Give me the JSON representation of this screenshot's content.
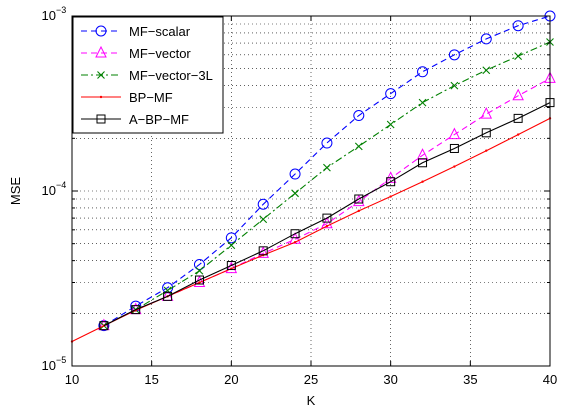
{
  "chart_data": {
    "type": "line",
    "title": "",
    "xlabel": "K",
    "ylabel": "MSE",
    "xlim": [
      10,
      40
    ],
    "ylim": [
      1e-05,
      0.001
    ],
    "yscale": "log",
    "grid": true,
    "legend_position": "top-left",
    "x_ticks": [
      10,
      15,
      20,
      25,
      30,
      35,
      40
    ],
    "x_tick_labels": [
      "10",
      "15",
      "20",
      "25",
      "30",
      "35",
      "40"
    ],
    "y_ticks": [
      1e-05,
      0.0001,
      0.001
    ],
    "y_tick_labels": [
      {
        "base": "10",
        "exp": "−5"
      },
      {
        "base": "10",
        "exp": "−4"
      },
      {
        "base": "10",
        "exp": "−3"
      }
    ],
    "series": [
      {
        "name": "MF−scalar",
        "color": "#0000ff",
        "line_style": "dashed",
        "marker": "circle",
        "x": [
          12,
          14,
          16,
          18,
          20,
          22,
          24,
          26,
          28,
          30,
          32,
          34,
          36,
          38,
          40
        ],
        "values": [
          1.7e-05,
          2.2e-05,
          2.8e-05,
          3.8e-05,
          5.4e-05,
          8.4e-05,
          0.000125,
          0.000188,
          0.00027,
          0.00036,
          0.00048,
          0.0006,
          0.00074,
          0.00088,
          0.001
        ]
      },
      {
        "name": "MF−vector",
        "color": "#ff00ff",
        "line_style": "dashed",
        "marker": "triangle",
        "x": [
          12,
          14,
          16,
          18,
          20,
          22,
          24,
          26,
          28,
          30,
          32,
          34,
          36,
          38,
          40
        ],
        "values": [
          1.7e-05,
          2.1e-05,
          2.5e-05,
          3e-05,
          3.6e-05,
          4.4e-05,
          5.3e-05,
          6.5e-05,
          8.7e-05,
          0.000118,
          0.00016,
          0.00021,
          0.000275,
          0.00035,
          0.00044
        ]
      },
      {
        "name": "MF−vector−3L",
        "color": "#008000",
        "line_style": "dashdot",
        "marker": "x",
        "x": [
          12,
          14,
          16,
          18,
          20,
          22,
          24,
          26,
          28,
          30,
          32,
          34,
          36,
          38,
          40
        ],
        "values": [
          1.7e-05,
          2.1e-05,
          2.7e-05,
          3.5e-05,
          4.9e-05,
          6.9e-05,
          9.7e-05,
          0.000136,
          0.00018,
          0.00024,
          0.00032,
          0.0004,
          0.00049,
          0.00059,
          0.00071
        ]
      },
      {
        "name": "BP−MF",
        "color": "#ff0000",
        "line_style": "solid",
        "marker": "point",
        "x": [
          10,
          12,
          14,
          16,
          18,
          20,
          22,
          24,
          26,
          28,
          30,
          32,
          34,
          36,
          38,
          40
        ],
        "values": [
          1.38e-05,
          1.7e-05,
          2.08e-05,
          2.5e-05,
          3e-05,
          3.6e-05,
          4.3e-05,
          5.1e-05,
          6.3e-05,
          7.7e-05,
          9.3e-05,
          0.000113,
          0.000138,
          0.00017,
          0.00021,
          0.00026
        ]
      },
      {
        "name": "A−BP−MF",
        "color": "#000000",
        "line_style": "solid",
        "marker": "square",
        "x": [
          12,
          14,
          16,
          18,
          20,
          22,
          24,
          26,
          28,
          30,
          32,
          34,
          36,
          38,
          40
        ],
        "values": [
          1.7e-05,
          2.1e-05,
          2.5e-05,
          3.1e-05,
          3.75e-05,
          4.55e-05,
          5.7e-05,
          7e-05,
          9e-05,
          0.000113,
          0.000145,
          0.000175,
          0.000215,
          0.00026,
          0.00032
        ]
      }
    ]
  }
}
